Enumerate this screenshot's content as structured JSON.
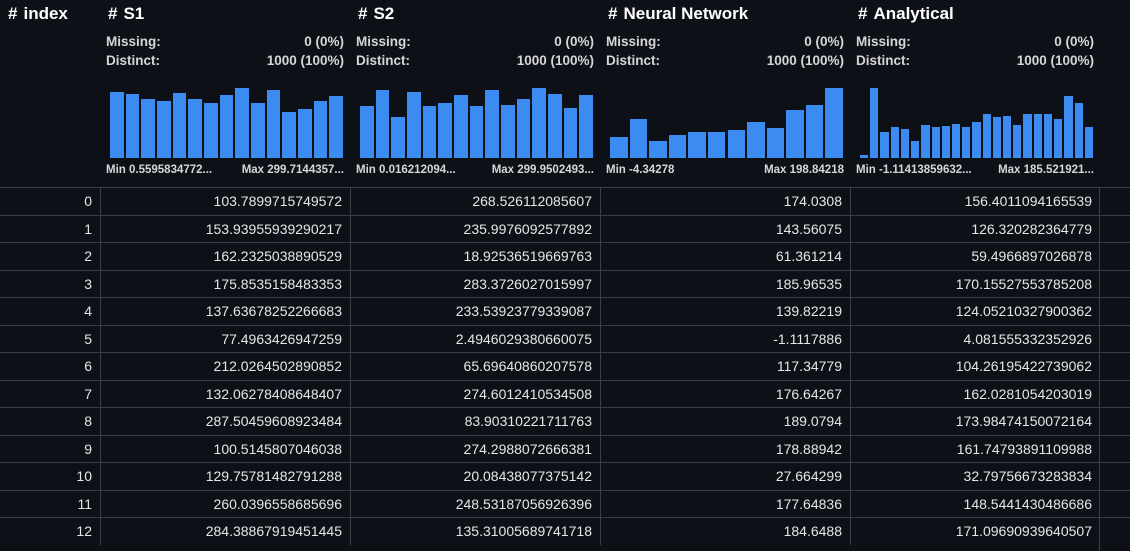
{
  "columns": [
    {
      "title": "index"
    },
    {
      "title": "S1",
      "missing": "0 (0%)",
      "distinct": "1000 (100%)",
      "min": "Min 0.5595834772...",
      "max": "Max 299.7144357...",
      "hist": [
        0.95,
        0.92,
        0.84,
        0.82,
        0.93,
        0.85,
        0.78,
        0.9,
        1.0,
        0.78,
        0.97,
        0.66,
        0.7,
        0.82,
        0.88
      ]
    },
    {
      "title": "S2",
      "missing": "0 (0%)",
      "distinct": "1000 (100%)",
      "min": "Min 0.016212094...",
      "max": "Max 299.9502493...",
      "hist": [
        0.74,
        0.97,
        0.58,
        0.94,
        0.74,
        0.78,
        0.9,
        0.75,
        0.97,
        0.76,
        0.84,
        1.0,
        0.92,
        0.72,
        0.9
      ]
    },
    {
      "title": "Neural Network",
      "missing": "0 (0%)",
      "distinct": "1000 (100%)",
      "min": "Min -4.34278",
      "max": "Max 198.84218",
      "hist": [
        0.3,
        0.56,
        0.25,
        0.33,
        0.37,
        0.37,
        0.4,
        0.52,
        0.43,
        0.68,
        0.76,
        1.0
      ]
    },
    {
      "title": "Analytical",
      "missing": "0 (0%)",
      "distinct": "1000 (100%)",
      "min": "Min -1.11413859632...",
      "max": "Max 185.521921...",
      "hist": [
        0.04,
        1.0,
        0.37,
        0.45,
        0.42,
        0.25,
        0.47,
        0.45,
        0.46,
        0.48,
        0.45,
        0.51,
        0.63,
        0.58,
        0.6,
        0.47,
        0.63,
        0.63,
        0.63,
        0.56,
        0.89,
        0.78,
        0.44
      ]
    }
  ],
  "labels": {
    "missing": "Missing:",
    "distinct": "Distinct:",
    "hash": "#"
  },
  "rows": [
    [
      "0",
      "103.7899715749572",
      "268.526112085607",
      "174.0308",
      "156.4011094165539"
    ],
    [
      "1",
      "153.93955939290217",
      "235.9976092577892",
      "143.56075",
      "126.320282364779"
    ],
    [
      "2",
      "162.2325038890529",
      "18.92536519669763",
      "61.361214",
      "59.4966897026878"
    ],
    [
      "3",
      "175.8535158483353",
      "283.3726027015997",
      "185.96535",
      "170.15527553785208"
    ],
    [
      "4",
      "137.63678252266683",
      "233.53923779339087",
      "139.82219",
      "124.05210327900362"
    ],
    [
      "5",
      "77.4963426947259",
      "2.4946029380660075",
      "-1.1117886",
      "4.081555332352926"
    ],
    [
      "6",
      "212.0264502890852",
      "65.69640860207578",
      "117.34779",
      "104.26195422739062"
    ],
    [
      "7",
      "132.06278408648407",
      "274.6012410534508",
      "176.64267",
      "162.0281054203019"
    ],
    [
      "8",
      "287.50459608923484",
      "83.90310221711763",
      "189.0794",
      "173.98474150072164"
    ],
    [
      "9",
      "100.5145807046038",
      "274.2988072666381",
      "178.88942",
      "161.74793891109988"
    ],
    [
      "10",
      "129.75781482791288",
      "20.08438077375142",
      "27.664299",
      "32.79756673283834"
    ],
    [
      "11",
      "260.0396558685696",
      "248.53187056926396",
      "177.64836",
      "148.5441430486686"
    ],
    [
      "12",
      "284.38867919451445",
      "135.31005689741718",
      "184.6488",
      "171.09690939640507"
    ]
  ],
  "colors": {
    "bar": "#3b8bf0",
    "background": "#0d1117",
    "grid": "#3a3f46"
  }
}
